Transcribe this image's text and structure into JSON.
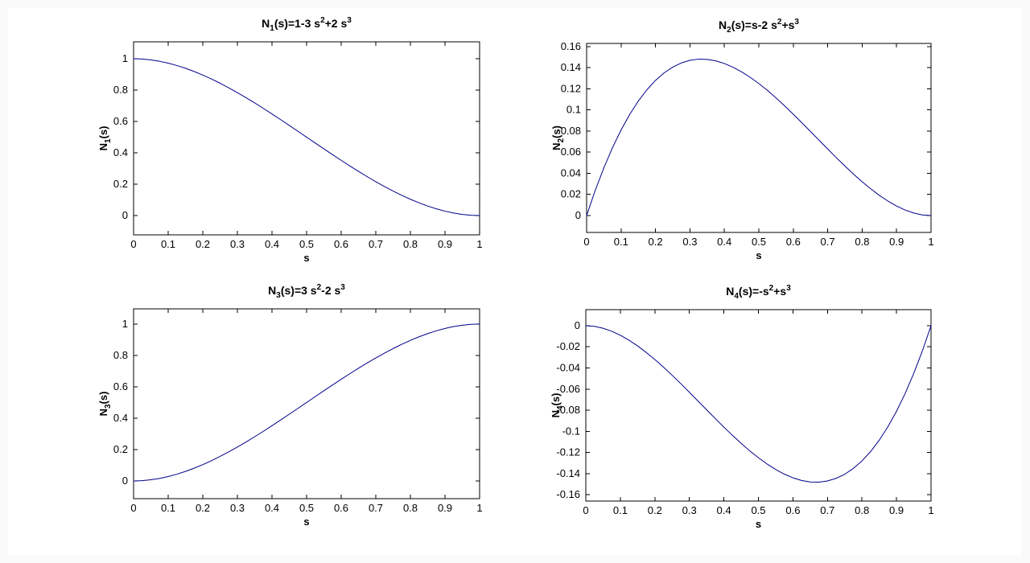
{
  "figure": {
    "kind": "matlab-figure-2x2",
    "colors": {
      "line": "#00008B",
      "axis": "#000000",
      "text": "#000000",
      "background": "#ffffff",
      "frame": "#fafafa"
    }
  },
  "chart_data": [
    {
      "type": "line",
      "title_text": "N1(s)=1-3 s2+2 s3",
      "title_rich": [
        [
          "N"
        ],
        [
          "1",
          "sub"
        ],
        [
          "(s)=1-3 s"
        ],
        [
          "2",
          "sup"
        ],
        [
          "+2 s"
        ],
        [
          "3",
          "sup"
        ]
      ],
      "xlabel": "s",
      "ylabel_text": "N1(s)",
      "ylabel_rich": [
        [
          "N"
        ],
        [
          "1",
          "sub"
        ],
        [
          "(s)"
        ]
      ],
      "xlim": [
        0,
        1
      ],
      "ylim": [
        -0.123,
        1.108
      ],
      "xticks": {
        "values": [
          0,
          0.1,
          0.2,
          0.3,
          0.4,
          0.5,
          0.6,
          0.7,
          0.8,
          0.9,
          1
        ],
        "labels": [
          "0",
          "0.1",
          "0.2",
          "0.3",
          "0.4",
          "0.5",
          "0.6",
          "0.7",
          "0.8",
          "0.9",
          "1"
        ]
      },
      "yticks": {
        "values": [
          0,
          0.2,
          0.4,
          0.6,
          0.8,
          1
        ],
        "labels": [
          "0",
          "0.2",
          "0.4",
          "0.6",
          "0.8",
          "1"
        ]
      },
      "x": [
        0,
        0.025,
        0.05,
        0.075,
        0.1,
        0.125,
        0.15,
        0.175,
        0.2,
        0.225,
        0.25,
        0.275,
        0.3,
        0.325,
        0.35,
        0.375,
        0.4,
        0.425,
        0.45,
        0.475,
        0.5,
        0.525,
        0.55,
        0.575,
        0.6,
        0.625,
        0.65,
        0.675,
        0.7,
        0.725,
        0.75,
        0.775,
        0.8,
        0.825,
        0.85,
        0.875,
        0.9,
        0.925,
        0.95,
        0.975,
        1
      ],
      "y": [
        1,
        0.9982,
        0.9928,
        0.984,
        0.972,
        0.957,
        0.9393,
        0.9188,
        0.896,
        0.8709,
        0.8438,
        0.8147,
        0.784,
        0.7518,
        0.7183,
        0.6836,
        0.648,
        0.6117,
        0.5748,
        0.5375,
        0.5,
        0.4625,
        0.4253,
        0.3883,
        0.352,
        0.3164,
        0.2818,
        0.2482,
        0.216,
        0.1853,
        0.1563,
        0.1291,
        0.104,
        0.0812,
        0.0608,
        0.043,
        0.028,
        0.016,
        0.0073,
        0.0018,
        0
      ]
    },
    {
      "type": "line",
      "title_text": "N2(s)=s-2 s2+s3",
      "title_rich": [
        [
          "N"
        ],
        [
          "2",
          "sub"
        ],
        [
          "(s)=s-2 s"
        ],
        [
          "2",
          "sup"
        ],
        [
          "+s"
        ],
        [
          "3",
          "sup"
        ]
      ],
      "xlabel": "s",
      "ylabel_text": "N2(s)",
      "ylabel_rich": [
        [
          "N"
        ],
        [
          "2",
          "sub"
        ],
        [
          "(s)"
        ]
      ],
      "xlim": [
        0,
        1
      ],
      "ylim": [
        -0.016,
        0.163
      ],
      "xticks": {
        "values": [
          0,
          0.1,
          0.2,
          0.3,
          0.4,
          0.5,
          0.6,
          0.7,
          0.8,
          0.9,
          1
        ],
        "labels": [
          "0",
          "0.1",
          "0.2",
          "0.3",
          "0.4",
          "0.5",
          "0.6",
          "0.7",
          "0.8",
          "0.9",
          "1"
        ]
      },
      "yticks": {
        "values": [
          0,
          0.02,
          0.04,
          0.06,
          0.08,
          0.1,
          0.12,
          0.14,
          0.16
        ],
        "labels": [
          "0",
          "0.02",
          "0.04",
          "0.06",
          "0.08",
          "0.1",
          "0.12",
          "0.14",
          "0.16"
        ]
      },
      "x": [
        0,
        0.025,
        0.05,
        0.075,
        0.1,
        0.125,
        0.15,
        0.175,
        0.2,
        0.225,
        0.25,
        0.275,
        0.3,
        0.325,
        0.35,
        0.375,
        0.4,
        0.425,
        0.45,
        0.475,
        0.5,
        0.525,
        0.55,
        0.575,
        0.6,
        0.625,
        0.65,
        0.675,
        0.7,
        0.725,
        0.75,
        0.775,
        0.8,
        0.825,
        0.85,
        0.875,
        0.9,
        0.925,
        0.95,
        0.975,
        1
      ],
      "y": [
        0,
        0.0238,
        0.0451,
        0.0642,
        0.081,
        0.0957,
        0.1084,
        0.1191,
        0.128,
        0.1351,
        0.1406,
        0.1445,
        0.147,
        0.1481,
        0.1479,
        0.1465,
        0.144,
        0.1405,
        0.1361,
        0.1309,
        0.125,
        0.1185,
        0.1114,
        0.1039,
        0.096,
        0.0879,
        0.0796,
        0.0713,
        0.063,
        0.0548,
        0.0469,
        0.0392,
        0.032,
        0.0253,
        0.0191,
        0.0137,
        0.009,
        0.0052,
        0.0024,
        0.0006,
        0
      ]
    },
    {
      "type": "line",
      "title_text": "N3(s)=3 s2-2 s3",
      "title_rich": [
        [
          "N"
        ],
        [
          "3",
          "sub"
        ],
        [
          "(s)=3 s"
        ],
        [
          "2",
          "sup"
        ],
        [
          "-2 s"
        ],
        [
          "3",
          "sup"
        ]
      ],
      "xlabel": "s",
      "ylabel_text": "N3(s)",
      "ylabel_rich": [
        [
          "N"
        ],
        [
          "3",
          "sub"
        ],
        [
          "(s)"
        ]
      ],
      "xlim": [
        0,
        1
      ],
      "ylim": [
        -0.113,
        1.097
      ],
      "xticks": {
        "values": [
          0,
          0.1,
          0.2,
          0.3,
          0.4,
          0.5,
          0.6,
          0.7,
          0.8,
          0.9,
          1
        ],
        "labels": [
          "0",
          "0.1",
          "0.2",
          "0.3",
          "0.4",
          "0.5",
          "0.6",
          "0.7",
          "0.8",
          "0.9",
          "1"
        ]
      },
      "yticks": {
        "values": [
          0,
          0.2,
          0.4,
          0.6,
          0.8,
          1
        ],
        "labels": [
          "0",
          "0.2",
          "0.4",
          "0.6",
          "0.8",
          "1"
        ]
      },
      "x": [
        0,
        0.025,
        0.05,
        0.075,
        0.1,
        0.125,
        0.15,
        0.175,
        0.2,
        0.225,
        0.25,
        0.275,
        0.3,
        0.325,
        0.35,
        0.375,
        0.4,
        0.425,
        0.45,
        0.475,
        0.5,
        0.525,
        0.55,
        0.575,
        0.6,
        0.625,
        0.65,
        0.675,
        0.7,
        0.725,
        0.75,
        0.775,
        0.8,
        0.825,
        0.85,
        0.875,
        0.9,
        0.925,
        0.95,
        0.975,
        1
      ],
      "y": [
        0,
        0.0018,
        0.0073,
        0.016,
        0.028,
        0.043,
        0.0608,
        0.0812,
        0.104,
        0.1291,
        0.1563,
        0.1853,
        0.216,
        0.2482,
        0.2818,
        0.3164,
        0.352,
        0.3883,
        0.4253,
        0.4625,
        0.5,
        0.5375,
        0.5748,
        0.6117,
        0.648,
        0.6836,
        0.7183,
        0.7518,
        0.784,
        0.8147,
        0.8438,
        0.8709,
        0.896,
        0.9188,
        0.9393,
        0.957,
        0.972,
        0.984,
        0.9928,
        0.9982,
        1
      ]
    },
    {
      "type": "line",
      "title_text": "N4(s)=-s2+s3",
      "title_rich": [
        [
          "N"
        ],
        [
          "4",
          "sub"
        ],
        [
          "(s)=-s"
        ],
        [
          "2",
          "sup"
        ],
        [
          "+s"
        ],
        [
          "3",
          "sup"
        ]
      ],
      "xlabel": "s",
      "ylabel_text": "N4(s)",
      "ylabel_rich": [
        [
          "N"
        ],
        [
          "4",
          "sub"
        ],
        [
          "(s)"
        ]
      ],
      "xlim": [
        0,
        1
      ],
      "ylim": [
        -0.166,
        0.0152
      ],
      "xticks": {
        "values": [
          0,
          0.1,
          0.2,
          0.3,
          0.4,
          0.5,
          0.6,
          0.7,
          0.8,
          0.9,
          1
        ],
        "labels": [
          "0",
          "0.1",
          "0.2",
          "0.3",
          "0.4",
          "0.5",
          "0.6",
          "0.7",
          "0.8",
          "0.9",
          "1"
        ]
      },
      "yticks": {
        "values": [
          0,
          -0.02,
          -0.04,
          -0.06,
          -0.08,
          -0.1,
          -0.12,
          -0.14,
          -0.16
        ],
        "labels": [
          "0",
          "-0.02",
          "-0.04",
          "-0.06",
          "-0.08",
          "-0.1",
          "-0.12",
          "-0.14",
          "-0.16"
        ]
      },
      "x": [
        0,
        0.025,
        0.05,
        0.075,
        0.1,
        0.125,
        0.15,
        0.175,
        0.2,
        0.225,
        0.25,
        0.275,
        0.3,
        0.325,
        0.35,
        0.375,
        0.4,
        0.425,
        0.45,
        0.475,
        0.5,
        0.525,
        0.55,
        0.575,
        0.6,
        0.625,
        0.65,
        0.675,
        0.7,
        0.725,
        0.75,
        0.775,
        0.8,
        0.825,
        0.85,
        0.875,
        0.9,
        0.925,
        0.95,
        0.975,
        1
      ],
      "y": [
        0,
        -0.0006,
        -0.0024,
        -0.0052,
        -0.009,
        -0.0137,
        -0.0191,
        -0.0253,
        -0.032,
        -0.0392,
        -0.0469,
        -0.0548,
        -0.063,
        -0.0713,
        -0.0796,
        -0.0879,
        -0.096,
        -0.1039,
        -0.1114,
        -0.1185,
        -0.125,
        -0.1309,
        -0.1361,
        -0.1405,
        -0.144,
        -0.1465,
        -0.1479,
        -0.1481,
        -0.147,
        -0.1445,
        -0.1406,
        -0.1351,
        -0.128,
        -0.1191,
        -0.1084,
        -0.0957,
        -0.081,
        -0.0642,
        -0.0451,
        -0.0238,
        0
      ]
    }
  ]
}
